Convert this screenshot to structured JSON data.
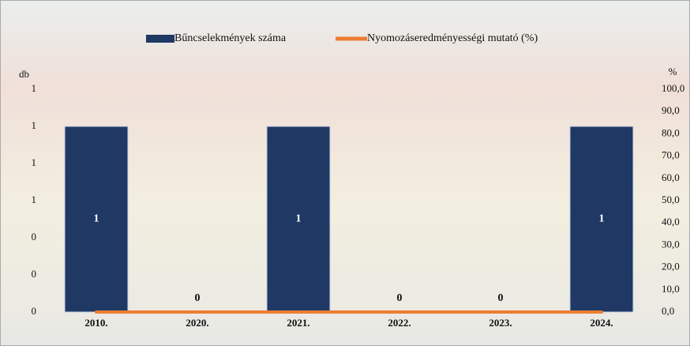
{
  "chart_data": {
    "type": "bar",
    "y_label": "db",
    "y2_label": "%",
    "categories": [
      "2010.",
      "2020.",
      "2021.",
      "2022.",
      "2023.",
      "2024."
    ],
    "series": [
      {
        "name": "Bűncselekmények száma",
        "color": "#1f3864",
        "values": [
          1,
          0,
          1,
          0,
          0,
          1
        ]
      },
      {
        "name": "Nyomozáseredményességi mutató (%)",
        "color": "#ed7d31",
        "values": [
          0,
          0,
          0,
          0,
          0,
          0
        ],
        "axis": "y2"
      }
    ],
    "ylim": [
      0,
      1.2
    ],
    "yticks": [
      0,
      {
        "value": 0.2,
        "label": "0"
      },
      {
        "value": 0.4,
        "label": "0"
      },
      {
        "value": 0.6,
        "label": "1"
      },
      {
        "value": 0.8,
        "label": "1"
      },
      1,
      {
        "value": 1.2,
        "label": "1"
      }
    ],
    "y2lim": [
      0,
      100
    ],
    "y2ticks": [
      {
        "value": 0,
        "label": "0,0"
      },
      {
        "value": 10,
        "label": "10,0"
      },
      {
        "value": 20,
        "label": "20,0"
      },
      {
        "value": 30,
        "label": "30,0"
      },
      {
        "value": 40,
        "label": "40,0"
      },
      {
        "value": 50,
        "label": "50,0"
      },
      {
        "value": 60,
        "label": "60,0"
      },
      {
        "value": 70,
        "label": "70,0"
      },
      {
        "value": 80,
        "label": "80,0"
      },
      {
        "value": 90,
        "label": "90,0"
      },
      {
        "value": 100,
        "label": "100,0"
      }
    ]
  }
}
